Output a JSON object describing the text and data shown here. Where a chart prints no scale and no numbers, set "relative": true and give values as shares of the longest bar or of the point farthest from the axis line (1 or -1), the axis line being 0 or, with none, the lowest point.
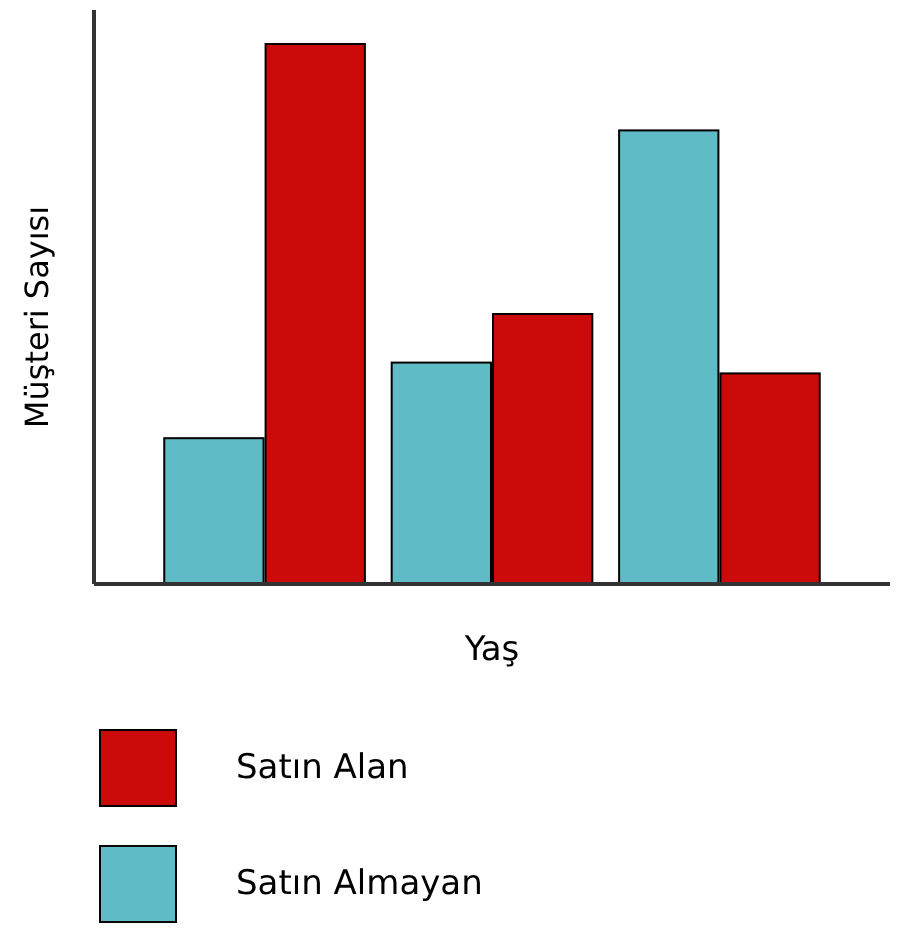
{
  "chart_data": {
    "type": "bar",
    "relative": true,
    "xlabel": "Yaş",
    "ylabel": "Müşteri Sayısı",
    "categories": [
      null,
      null,
      null
    ],
    "legend": "bottom",
    "series": [
      {
        "name": "Satın Almayan",
        "color": "#5fbcc6",
        "values": [
          0.27,
          0.41,
          0.84
        ]
      },
      {
        "name": "Satın Alan",
        "color": "#cc0a0a",
        "values": [
          1,
          0.5,
          0.39
        ]
      }
    ]
  }
}
